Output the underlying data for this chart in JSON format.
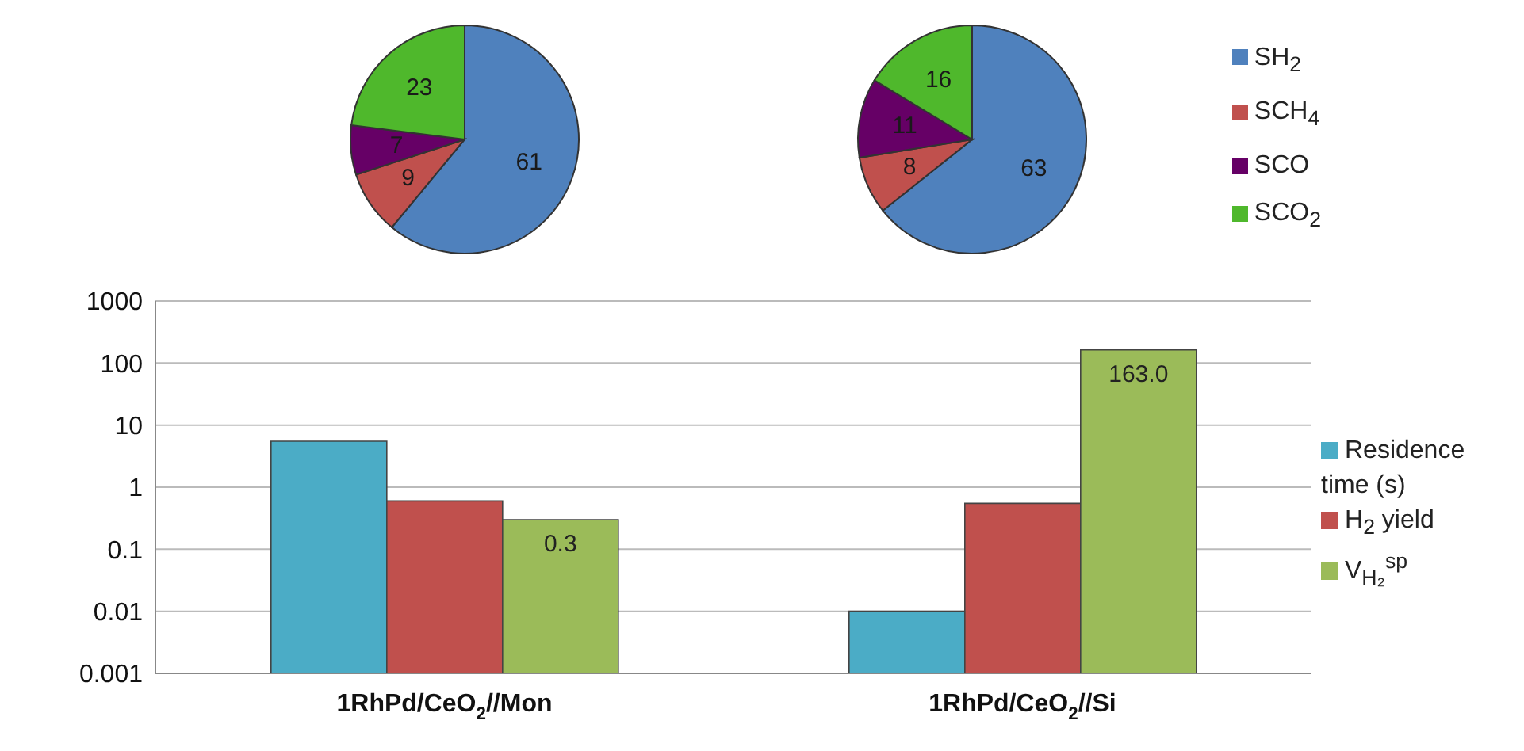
{
  "chart_data": [
    {
      "type": "pie",
      "values": [
        61,
        9,
        7,
        23
      ],
      "colors": [
        "#4f81bd",
        "#c0504d",
        "#660066",
        "#4fb82c"
      ],
      "data_labels": true
    },
    {
      "type": "pie",
      "categories": [
        "SH$_{2}$",
        "SCH$_{4}$",
        "SCO",
        "SCO$_{2}$"
      ],
      "values": [
        63,
        8,
        11,
        16
      ],
      "colors": [
        "#4f81bd",
        "#c0504d",
        "#660066",
        "#4fb82c"
      ],
      "data_labels": true,
      "legend": "right"
    },
    {
      "type": "bar",
      "categories": [
        "1RhPd/CeO$_{2}$//Mon",
        "1RhPd/CeO$_{2}$//Si"
      ],
      "log": "y",
      "ylim": [
        0.001,
        1000
      ],
      "yticks": [
        0.001,
        0.01,
        0.1,
        1,
        10,
        100,
        1000
      ],
      "grid": "y",
      "legend": "right",
      "series": [
        {
          "name": "Residence time (s)",
          "color": "#4bacc6",
          "values": [
            5.5,
            0.01
          ]
        },
        {
          "name": "H$_{2}$ yield",
          "color": "#c0504d",
          "values": [
            0.6,
            0.55
          ]
        },
        {
          "name": "V$_{H₂}$$^{sp}$",
          "color": "#9bbb59",
          "values": [
            0.3,
            163
          ],
          "value_labels": [
            "0.3",
            "163.0"
          ]
        }
      ]
    }
  ]
}
